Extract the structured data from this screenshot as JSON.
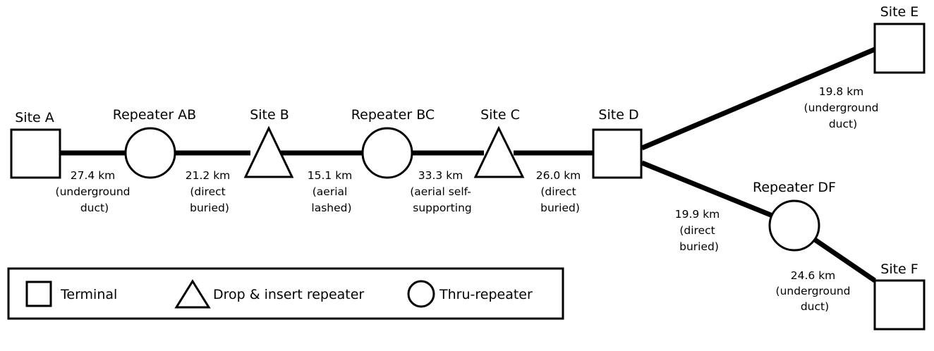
{
  "nodes": {
    "site_a": {
      "label": "Site A",
      "type": "terminal"
    },
    "repeater_ab": {
      "label": "Repeater AB",
      "type": "thru-repeater"
    },
    "site_b": {
      "label": "Site B",
      "type": "drop-insert-repeater"
    },
    "repeater_bc": {
      "label": "Repeater BC",
      "type": "thru-repeater"
    },
    "site_c": {
      "label": "Site C",
      "type": "drop-insert-repeater"
    },
    "site_d": {
      "label": "Site D",
      "type": "terminal"
    },
    "site_e": {
      "label": "Site E",
      "type": "terminal"
    },
    "repeater_df": {
      "label": "Repeater DF",
      "type": "thru-repeater"
    },
    "site_f": {
      "label": "Site F",
      "type": "terminal"
    }
  },
  "segments": {
    "a_rab": {
      "from": "Site A",
      "to": "Repeater AB",
      "lines": [
        "27.4 km",
        "(underground",
        "duct)"
      ]
    },
    "rab_b": {
      "from": "Repeater AB",
      "to": "Site B",
      "lines": [
        "21.2 km",
        "(direct",
        "buried)"
      ]
    },
    "b_rbc": {
      "from": "Site B",
      "to": "Repeater BC",
      "lines": [
        "15.1 km",
        "(aerial",
        "lashed)"
      ]
    },
    "rbc_c": {
      "from": "Repeater BC",
      "to": "Site C",
      "lines": [
        "33.3 km",
        "(aerial self-",
        "supporting"
      ]
    },
    "c_d": {
      "from": "Site C",
      "to": "Site D",
      "lines": [
        "26.0 km",
        "(direct",
        "buried)"
      ]
    },
    "d_e": {
      "from": "Site D",
      "to": "Site E",
      "lines": [
        "19.8 km",
        "(underground",
        "duct)"
      ]
    },
    "d_rdf": {
      "from": "Site D",
      "to": "Repeater DF",
      "lines": [
        "19.9 km",
        "(direct",
        "buried)"
      ]
    },
    "rdf_f": {
      "from": "Repeater DF",
      "to": "Site F",
      "lines": [
        "24.6 km",
        "(underground",
        "duct)"
      ]
    }
  },
  "legend": {
    "terminal": "Terminal",
    "drop_insert": "Drop & insert repeater",
    "thru": "Thru-repeater"
  }
}
